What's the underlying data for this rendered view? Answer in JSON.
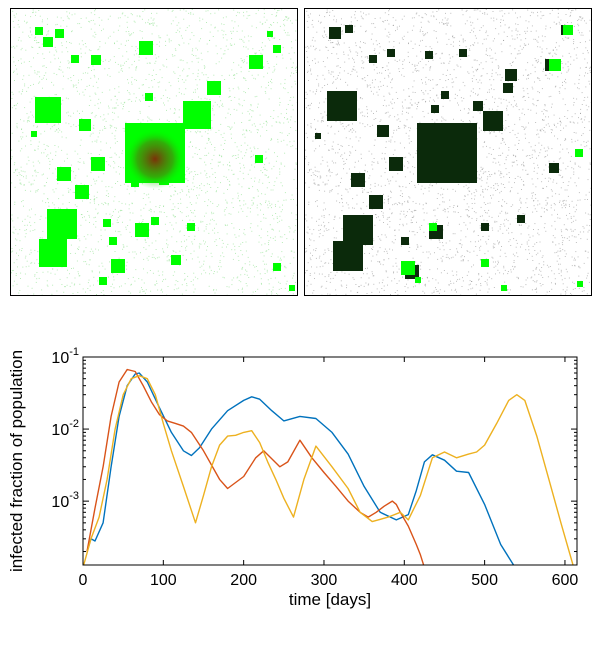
{
  "colors": {
    "series1": "#0072BD",
    "series2": "#D95319",
    "series3": "#EDB120",
    "green": "#00ff00",
    "dark": "#0b2a0b"
  },
  "chart_data": {
    "type": "line",
    "xlabel": "time [days]",
    "ylabel": "infected fraction of population",
    "xlim": [
      0,
      615
    ],
    "ylim": [
      0.00013,
      0.1
    ],
    "yscale": "log",
    "xticks": [
      0,
      100,
      200,
      300,
      400,
      500,
      600
    ],
    "xtick_labels": [
      "0",
      "100",
      "200",
      "300",
      "400",
      "500",
      "600"
    ],
    "yticks": [
      0.001,
      0.01,
      0.1
    ],
    "ytick_labels": [
      {
        "base": "10",
        "exp": "-3"
      },
      {
        "base": "10",
        "exp": "-2"
      },
      {
        "base": "10",
        "exp": "-1"
      }
    ],
    "grid": false,
    "series": [
      {
        "color": "#0072BD",
        "x": [
          5,
          10,
          15,
          25,
          35,
          45,
          55,
          65,
          70,
          80,
          95,
          110,
          125,
          135,
          145,
          160,
          180,
          200,
          210,
          220,
          235,
          250,
          270,
          290,
          310,
          330,
          350,
          370,
          390,
          405,
          415,
          425,
          435,
          450,
          465,
          480,
          500,
          520,
          540
        ],
        "y": [
          0.0002,
          0.0003,
          0.00028,
          0.0005,
          0.003,
          0.015,
          0.04,
          0.058,
          0.06,
          0.045,
          0.02,
          0.009,
          0.005,
          0.0043,
          0.0055,
          0.01,
          0.018,
          0.025,
          0.028,
          0.026,
          0.018,
          0.013,
          0.015,
          0.014,
          0.009,
          0.0045,
          0.0016,
          0.0007,
          0.00055,
          0.00065,
          0.0014,
          0.0035,
          0.0044,
          0.0037,
          0.0026,
          0.0025,
          0.0009,
          0.00025,
          0.00011
        ]
      },
      {
        "color": "#D95319",
        "x": [
          5,
          10,
          15,
          25,
          35,
          45,
          55,
          65,
          75,
          85,
          95,
          105,
          115,
          125,
          135,
          150,
          170,
          180,
          200,
          215,
          225,
          245,
          255,
          270,
          285,
          300,
          315,
          330,
          345,
          355,
          365,
          375,
          385,
          390,
          395,
          405,
          415,
          420,
          425
        ],
        "y": [
          0.0002,
          0.0004,
          0.0008,
          0.003,
          0.015,
          0.045,
          0.067,
          0.063,
          0.04,
          0.024,
          0.016,
          0.013,
          0.012,
          0.011,
          0.009,
          0.005,
          0.002,
          0.0015,
          0.0022,
          0.004,
          0.005,
          0.003,
          0.0035,
          0.007,
          0.004,
          0.0025,
          0.0016,
          0.001,
          0.0007,
          0.0006,
          0.0007,
          0.00085,
          0.001,
          0.0009,
          0.0007,
          0.00045,
          0.00025,
          0.00018,
          0.00012
        ]
      },
      {
        "color": "#EDB120",
        "x": [
          0,
          10,
          20,
          30,
          40,
          50,
          60,
          70,
          80,
          90,
          100,
          110,
          125,
          140,
          150,
          160,
          170,
          180,
          190,
          200,
          210,
          220,
          230,
          240,
          250,
          262,
          275,
          290,
          310,
          330,
          345,
          360,
          380,
          395,
          405,
          420,
          435,
          450,
          465,
          480,
          490,
          500,
          515,
          530,
          540,
          550,
          565,
          580,
          595,
          610
        ],
        "y": [
          0.00012,
          0.0003,
          0.0006,
          0.002,
          0.01,
          0.03,
          0.05,
          0.055,
          0.05,
          0.03,
          0.012,
          0.005,
          0.0016,
          0.0005,
          0.0012,
          0.003,
          0.006,
          0.008,
          0.0082,
          0.009,
          0.0095,
          0.0065,
          0.0035,
          0.002,
          0.0011,
          0.0006,
          0.002,
          0.0058,
          0.003,
          0.0015,
          0.0007,
          0.00052,
          0.0006,
          0.0007,
          0.00055,
          0.0012,
          0.004,
          0.0048,
          0.004,
          0.0045,
          0.0048,
          0.006,
          0.012,
          0.025,
          0.03,
          0.025,
          0.008,
          0.002,
          0.0005,
          0.00013
        ]
      }
    ]
  }
}
